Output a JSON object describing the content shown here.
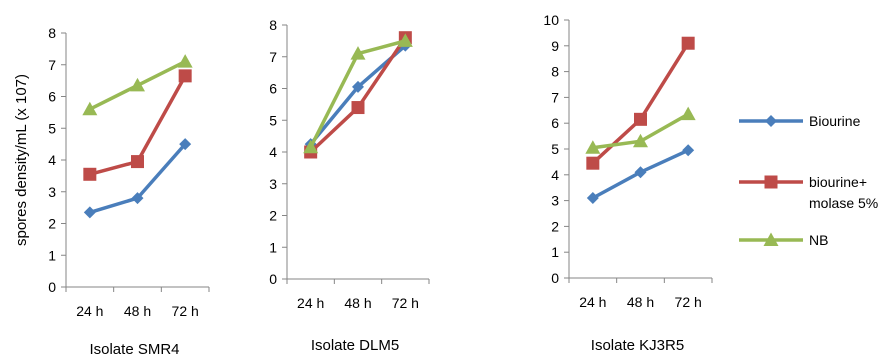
{
  "chart_data": [
    {
      "type": "line",
      "title": "Isolate SMR4",
      "ylabel": "spores density/mL (x 107)",
      "categories": [
        "24 h",
        "48 h",
        "72 h"
      ],
      "ylim": [
        0,
        8
      ],
      "yticks": [
        "0",
        "1",
        "2",
        "3",
        "4",
        "5",
        "6",
        "7",
        "8"
      ],
      "series": [
        {
          "name": "Biourine",
          "values": [
            2.35,
            2.8,
            4.5
          ]
        },
        {
          "name": "biourine+ molase 5%",
          "values": [
            3.55,
            3.95,
            6.65
          ]
        },
        {
          "name": "NB",
          "values": [
            5.6,
            6.35,
            7.1
          ]
        }
      ]
    },
    {
      "type": "line",
      "title": "Isolate DLM5",
      "categories": [
        "24 h",
        "48 h",
        "72 h"
      ],
      "ylim": [
        0,
        8
      ],
      "yticks": [
        "0",
        "1",
        "2",
        "3",
        "4",
        "5",
        "6",
        "7",
        "8"
      ],
      "series": [
        {
          "name": "Biourine",
          "values": [
            4.25,
            6.05,
            7.35
          ]
        },
        {
          "name": "biourine+ molase 5%",
          "values": [
            4.0,
            5.4,
            7.6
          ]
        },
        {
          "name": "NB",
          "values": [
            4.15,
            7.1,
            7.5
          ]
        }
      ]
    },
    {
      "type": "line",
      "title": "Isolate KJ3R5",
      "categories": [
        "24 h",
        "48 h",
        "72 h"
      ],
      "ylim": [
        0,
        10
      ],
      "yticks": [
        "0",
        "1",
        "2",
        "3",
        "4",
        "5",
        "6",
        "7",
        "8",
        "9",
        "10"
      ],
      "series": [
        {
          "name": "Biourine",
          "values": [
            3.1,
            4.1,
            4.95
          ]
        },
        {
          "name": "biourine+ molase 5%",
          "values": [
            4.45,
            6.15,
            9.1
          ]
        },
        {
          "name": "NB",
          "values": [
            5.05,
            5.3,
            6.35
          ]
        }
      ]
    }
  ],
  "legend": {
    "placement": "right",
    "entries": [
      {
        "lines": [
          "Biourine"
        ],
        "color": "#4a7ebb",
        "marker": "diamond"
      },
      {
        "lines": [
          "biourine+",
          "molase 5%"
        ],
        "color": "#be4b48",
        "marker": "square"
      },
      {
        "lines": [
          "NB"
        ],
        "color": "#98b954",
        "marker": "triangle"
      }
    ]
  },
  "colors": {
    "series": [
      "#4a7ebb",
      "#be4b48",
      "#98b954"
    ],
    "axis": "#868686"
  },
  "markers": [
    "diamond",
    "square",
    "triangle"
  ]
}
